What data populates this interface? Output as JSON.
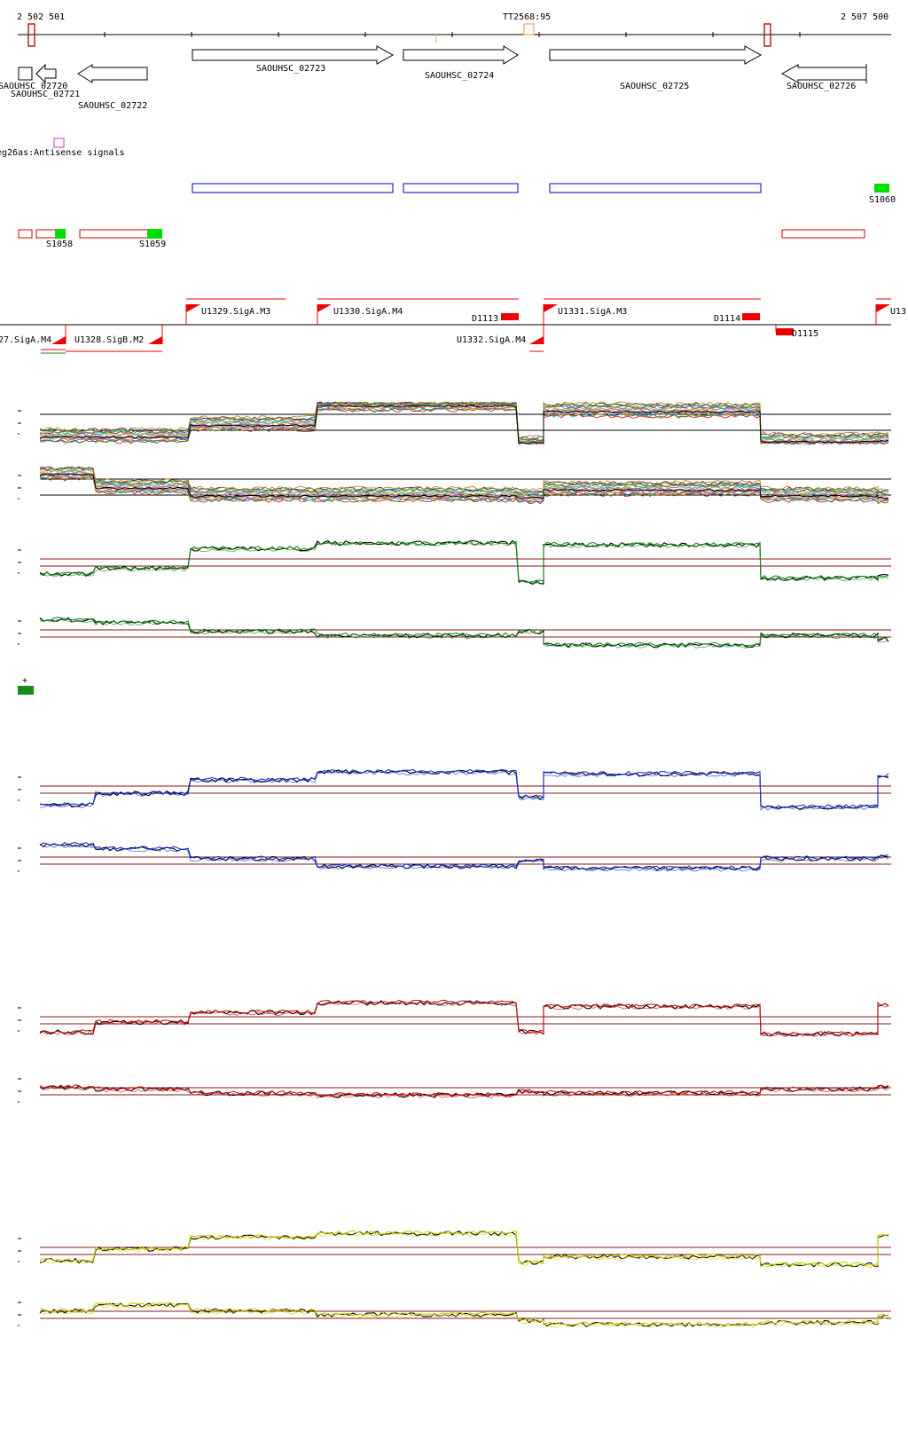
{
  "ruler": {
    "start_label": "2 502 501",
    "end_label": "2 507 500",
    "terminator_label": "TT2568:95"
  },
  "genes": [
    {
      "id": "g20",
      "label": "SAOUHSC_02720",
      "strand": "-"
    },
    {
      "id": "g21",
      "label": "SAOUHSC_02721",
      "strand": "-"
    },
    {
      "id": "g22",
      "label": "SAOUHSC_02722",
      "strand": "-"
    },
    {
      "id": "g23",
      "label": "SAOUHSC_02723",
      "strand": "+"
    },
    {
      "id": "g24",
      "label": "SAOUHSC_02724",
      "strand": "+"
    },
    {
      "id": "g25",
      "label": "SAOUHSC_02725",
      "strand": "+"
    },
    {
      "id": "g26",
      "label": "SAOUHSC_02726",
      "strand": "-"
    }
  ],
  "antisense": {
    "label": "eg26as:Antisense signals"
  },
  "segments": {
    "s1058": "S1058",
    "s1059": "S1059",
    "s1060": "S1060"
  },
  "promoters": {
    "u1327": "27.SigA.M4",
    "u1328": "U1328.SigB.M2",
    "u1329": "U1329.SigA.M3",
    "u1330": "U1330.SigA.M4",
    "u1331": "U1331.SigA.M3",
    "u1332": "U1332.SigA.M4",
    "u13x": "U13",
    "d1113": "D1113",
    "d1114": "D1114",
    "d1115": "D1115"
  },
  "legend_plus": "+",
  "colors": {
    "gene_outline": "#000000",
    "blue_box": "#0000cc",
    "red_box": "#dd0000",
    "green_fill": "#00dd00",
    "promoter": "#ee0000",
    "threshold": "#8b1a1a",
    "track_green": "#1a8a1a",
    "track_blue": "#1a33cc",
    "track_red": "#cc1111",
    "track_yellow": "#cccc00"
  },
  "tracks": [
    {
      "id": "multi-plus",
      "kind": "multi",
      "profile": [
        0.2,
        0.2,
        0.5,
        1.0,
        0.0,
        0.85,
        0.08,
        0.1
      ]
    },
    {
      "id": "multi-minus",
      "kind": "multi",
      "profile": [
        0.9,
        0.55,
        0.35,
        0.35,
        0.3,
        0.5,
        0.35,
        0.3
      ]
    },
    {
      "id": "green-plus",
      "color": "track_green",
      "profile": [
        0.2,
        0.35,
        0.85,
        1.0,
        0.0,
        0.95,
        0.1,
        0.15
      ]
    },
    {
      "id": "green-minus",
      "color": "track_green",
      "profile": [
        0.85,
        0.78,
        0.55,
        0.45,
        0.55,
        0.2,
        0.45,
        0.35
      ]
    },
    {
      "id": "blue-plus",
      "color": "track_blue",
      "profile": [
        0.1,
        0.4,
        0.75,
        0.95,
        0.3,
        0.9,
        0.05,
        0.85
      ]
    },
    {
      "id": "blue-minus",
      "color": "track_blue",
      "profile": [
        0.9,
        0.8,
        0.55,
        0.35,
        0.5,
        0.3,
        0.55,
        0.6
      ]
    },
    {
      "id": "red-plus",
      "color": "track_red",
      "profile": [
        0.2,
        0.45,
        0.7,
        0.95,
        0.2,
        0.85,
        0.15,
        0.9
      ]
    },
    {
      "id": "red-minus",
      "color": "track_red",
      "profile": [
        0.6,
        0.55,
        0.45,
        0.4,
        0.5,
        0.45,
        0.55,
        0.6
      ]
    },
    {
      "id": "yellow-plus",
      "color": "track_yellow",
      "profile": [
        0.25,
        0.55,
        0.85,
        0.95,
        0.2,
        0.35,
        0.15,
        0.9
      ]
    },
    {
      "id": "yellow-minus",
      "color": "track_yellow",
      "profile": [
        0.6,
        0.75,
        0.6,
        0.5,
        0.35,
        0.25,
        0.3,
        0.45
      ]
    }
  ]
}
